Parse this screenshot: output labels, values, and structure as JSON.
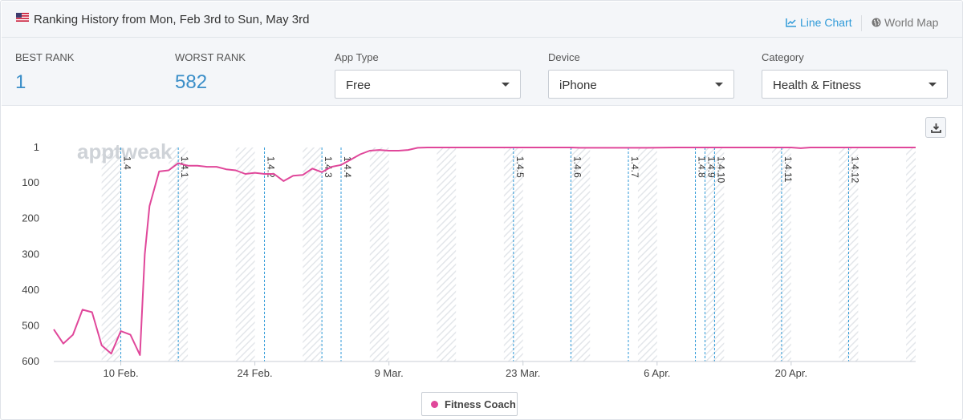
{
  "header": {
    "title": "Ranking History from Mon, Feb 3rd to Sun, May 3rd",
    "flag_icon": "us-flag-icon",
    "line_chart_label": "Line Chart",
    "world_map_label": "World Map"
  },
  "stats": {
    "best_rank_label": "BEST RANK",
    "best_rank_value": "1",
    "worst_rank_label": "WORST RANK",
    "worst_rank_value": "582"
  },
  "filters": {
    "app_type": {
      "label": "App Type",
      "value": "Free"
    },
    "device": {
      "label": "Device",
      "value": "iPhone"
    },
    "category": {
      "label": "Category",
      "value": "Health & Fitness"
    }
  },
  "colors": {
    "series": "#e0479a",
    "version_line": "#2f9ad8",
    "accent": "#3a8ec8"
  },
  "watermark": "apptweak",
  "legend": {
    "series_name": "Fitness Coach"
  },
  "chart_data": {
    "type": "line",
    "y_inverted": true,
    "ylim": [
      1,
      600
    ],
    "y_ticks": [
      "1",
      "100",
      "200",
      "300",
      "400",
      "500",
      "600"
    ],
    "x_range": [
      "2020-02-03",
      "2020-05-03"
    ],
    "x_ticks": [
      {
        "date": "2020-02-10",
        "label": "10 Feb."
      },
      {
        "date": "2020-02-24",
        "label": "24 Feb."
      },
      {
        "date": "2020-03-09",
        "label": "9 Mar."
      },
      {
        "date": "2020-03-23",
        "label": "23 Mar."
      },
      {
        "date": "2020-04-06",
        "label": "6 Apr."
      },
      {
        "date": "2020-04-20",
        "label": "20 Apr."
      }
    ],
    "weekend_shading": true,
    "versions": [
      {
        "label": "1.4",
        "date": "2020-02-10"
      },
      {
        "label": "1.4.1",
        "date": "2020-02-16"
      },
      {
        "label": "1.4.2",
        "date": "2020-02-25"
      },
      {
        "label": "1.4.3",
        "date": "2020-03-02"
      },
      {
        "label": "1.4.4",
        "date": "2020-03-04"
      },
      {
        "label": "1.4.5",
        "date": "2020-03-22"
      },
      {
        "label": "1.4.6",
        "date": "2020-03-28"
      },
      {
        "label": "1.4.7",
        "date": "2020-04-03"
      },
      {
        "label": "1.4.8",
        "date": "2020-04-10"
      },
      {
        "label": "1.4.9",
        "date": "2020-04-11"
      },
      {
        "label": "1.4.10",
        "date": "2020-04-12"
      },
      {
        "label": "1.4.11",
        "date": "2020-04-19"
      },
      {
        "label": "1.4.12",
        "date": "2020-04-26"
      }
    ],
    "series": [
      {
        "name": "Fitness Coach",
        "points": [
          [
            "2020-02-03",
            510
          ],
          [
            "2020-02-04",
            550
          ],
          [
            "2020-02-05",
            525
          ],
          [
            "2020-02-06",
            455
          ],
          [
            "2020-02-07",
            462
          ],
          [
            "2020-02-08",
            555
          ],
          [
            "2020-02-09",
            578
          ],
          [
            "2020-02-10",
            515
          ],
          [
            "2020-02-11",
            525
          ],
          [
            "2020-02-12",
            582
          ],
          [
            "2020-02-12T12:00",
            300
          ],
          [
            "2020-02-13",
            165
          ],
          [
            "2020-02-14",
            68
          ],
          [
            "2020-02-15",
            65
          ],
          [
            "2020-02-16",
            45
          ],
          [
            "2020-02-17",
            52
          ],
          [
            "2020-02-18",
            52
          ],
          [
            "2020-02-19",
            55
          ],
          [
            "2020-02-20",
            55
          ],
          [
            "2020-02-21",
            62
          ],
          [
            "2020-02-22",
            65
          ],
          [
            "2020-02-23",
            75
          ],
          [
            "2020-02-24",
            72
          ],
          [
            "2020-02-25",
            75
          ],
          [
            "2020-02-26",
            75
          ],
          [
            "2020-02-27",
            95
          ],
          [
            "2020-02-28",
            80
          ],
          [
            "2020-02-29",
            78
          ],
          [
            "2020-03-01",
            60
          ],
          [
            "2020-03-02",
            70
          ],
          [
            "2020-03-03",
            55
          ],
          [
            "2020-03-04",
            50
          ],
          [
            "2020-03-05",
            35
          ],
          [
            "2020-03-06",
            20
          ],
          [
            "2020-03-07",
            10
          ],
          [
            "2020-03-08",
            8
          ],
          [
            "2020-03-09",
            10
          ],
          [
            "2020-03-10",
            10
          ],
          [
            "2020-03-11",
            8
          ],
          [
            "2020-03-12",
            2
          ],
          [
            "2020-03-13",
            1
          ],
          [
            "2020-03-15",
            1
          ],
          [
            "2020-03-20",
            1
          ],
          [
            "2020-03-25",
            1
          ],
          [
            "2020-03-28",
            1
          ],
          [
            "2020-03-29",
            2
          ],
          [
            "2020-04-01",
            2
          ],
          [
            "2020-04-05",
            2
          ],
          [
            "2020-04-08",
            1
          ],
          [
            "2020-04-15",
            1
          ],
          [
            "2020-04-20",
            1
          ],
          [
            "2020-04-21",
            3
          ],
          [
            "2020-04-22",
            1
          ],
          [
            "2020-04-30",
            1
          ],
          [
            "2020-05-03",
            1
          ]
        ]
      }
    ]
  }
}
